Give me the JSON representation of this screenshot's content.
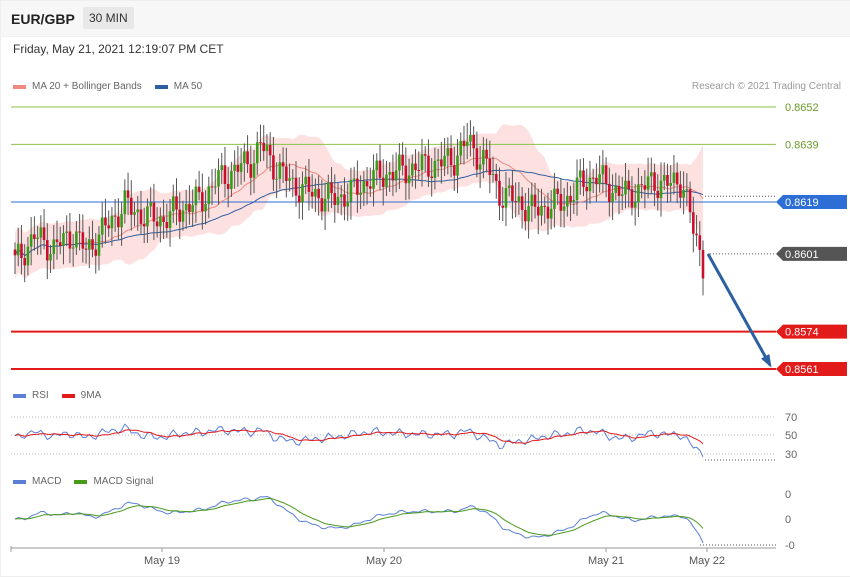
{
  "header": {
    "pair": "EUR/GBP",
    "timeframe": "30 MIN"
  },
  "datetime": "Friday, May 21, 2021 12:19:07 PM CET",
  "legend_main": [
    {
      "label": "MA 20 + Bollinger Bands",
      "color": "#f08a80"
    },
    {
      "label": "MA 50",
      "color": "#2d5fa3"
    }
  ],
  "credit": "Research © 2021 Trading Central",
  "legend_rsi": [
    {
      "label": "RSI",
      "color": "#5b7fd6"
    },
    {
      "label": "9MA",
      "color": "#e31a1a"
    }
  ],
  "legend_macd": [
    {
      "label": "MACD",
      "color": "#5b7fd6"
    },
    {
      "label": "MACD Signal",
      "color": "#4a9a1a"
    }
  ],
  "chart_data": [
    {
      "type": "candlestick",
      "ylim": [
        0.8561,
        0.8652
      ],
      "levels": [
        {
          "value": 0.8652,
          "label": "0.8652",
          "color": "#8bc34a",
          "style": "thin"
        },
        {
          "value": 0.8639,
          "label": "0.8639",
          "color": "#8bc34a",
          "style": "thin"
        },
        {
          "value": 0.8619,
          "label": "0.8619",
          "color": "#2c6ed5",
          "style": "blue"
        },
        {
          "value": 0.8601,
          "label": "0.8601",
          "color": "#333333",
          "style": "current"
        },
        {
          "value": 0.8574,
          "label": "0.8574",
          "color": "#e31a1a",
          "style": "red"
        },
        {
          "value": 0.8561,
          "label": "0.8561",
          "color": "#e31a1a",
          "style": "red"
        }
      ],
      "x_ticks": [
        "May 19",
        "May 20",
        "May 21",
        "May 22"
      ],
      "projection": {
        "from": 0.8601,
        "to": 0.8561,
        "color": "#2d5fa3"
      },
      "series": [
        {
          "name": "MA 20 + Bollinger Bands"
        },
        {
          "name": "MA 50"
        }
      ]
    },
    {
      "type": "line",
      "y_ticks": [
        "70",
        "50",
        "30"
      ],
      "series": [
        {
          "name": "RSI"
        },
        {
          "name": "9MA"
        }
      ]
    },
    {
      "type": "line",
      "y_ticks": [
        "0",
        "0",
        "-0"
      ],
      "series": [
        {
          "name": "MACD"
        },
        {
          "name": "MACD Signal"
        }
      ]
    }
  ]
}
